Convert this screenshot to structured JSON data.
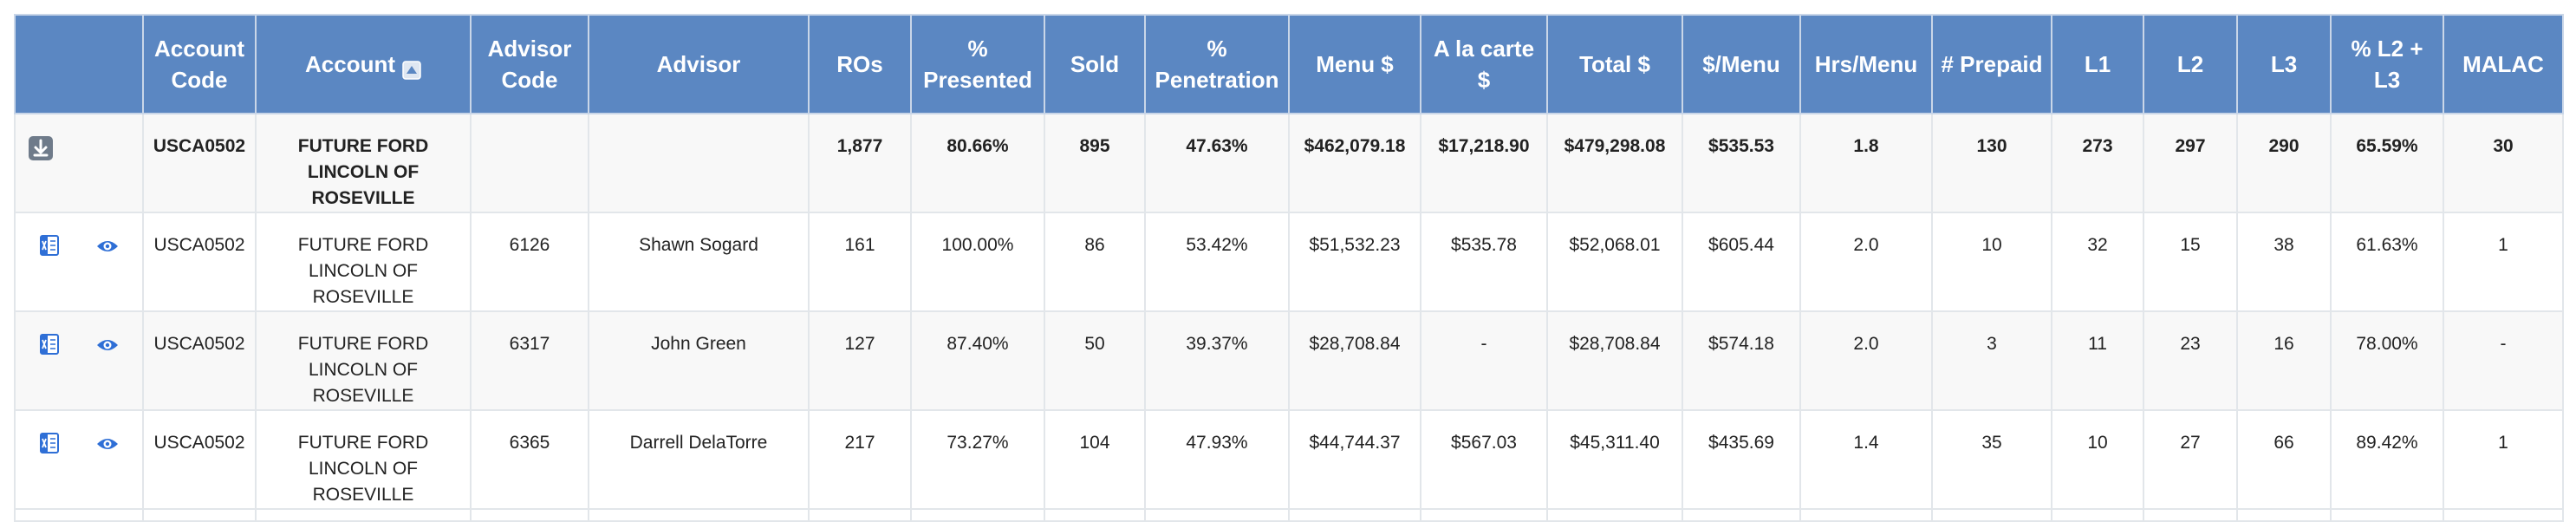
{
  "headers": {
    "blank": "",
    "account_code": "Account Code",
    "account": "Account",
    "advisor_code": "Advisor Code",
    "advisor": "Advisor",
    "ros": "ROs",
    "pct_presented": "% Presented",
    "sold": "Sold",
    "pct_penetration": "% Penetration",
    "menu": "Menu $",
    "alacarte": "A la carte $",
    "total": "Total $",
    "per_menu": "$/Menu",
    "hrs_menu": "Hrs/Menu",
    "prepaid": "# Prepaid",
    "l1": "L1",
    "l2": "L2",
    "l3": "L3",
    "pct_l2l3": "% L2 + L3",
    "malac": "MALAC"
  },
  "icons": {
    "sort": "sort-ascending-icon",
    "download": "download-icon",
    "excel": "excel-export-icon",
    "view": "eye-icon",
    "accent": "#5b87c2",
    "icon_blue": "#2f6fd6"
  },
  "total_row": {
    "account_code": "USCA0502",
    "account": "FUTURE FORD LINCOLN OF ROSEVILLE",
    "advisor_code": "",
    "advisor": "",
    "ros": "1,877",
    "pct_presented": "80.66%",
    "sold": "895",
    "pct_penetration": "47.63%",
    "menu": "$462,079.18",
    "alacarte": "$17,218.90",
    "total": "$479,298.08",
    "per_menu": "$535.53",
    "hrs_menu": "1.8",
    "prepaid": "130",
    "l1": "273",
    "l2": "297",
    "l3": "290",
    "pct_l2l3": "65.59%",
    "malac": "30"
  },
  "rows": [
    {
      "account_code": "USCA0502",
      "account": "FUTURE FORD LINCOLN OF ROSEVILLE",
      "advisor_code": "6126",
      "advisor": "Shawn Sogard",
      "ros": "161",
      "pct_presented": "100.00%",
      "sold": "86",
      "pct_penetration": "53.42%",
      "menu": "$51,532.23",
      "alacarte": "$535.78",
      "total": "$52,068.01",
      "per_menu": "$605.44",
      "hrs_menu": "2.0",
      "prepaid": "10",
      "l1": "32",
      "l2": "15",
      "l3": "38",
      "pct_l2l3": "61.63%",
      "malac": "1"
    },
    {
      "account_code": "USCA0502",
      "account": "FUTURE FORD LINCOLN OF ROSEVILLE",
      "advisor_code": "6317",
      "advisor": "John Green",
      "ros": "127",
      "pct_presented": "87.40%",
      "sold": "50",
      "pct_penetration": "39.37%",
      "menu": "$28,708.84",
      "alacarte": "-",
      "total": "$28,708.84",
      "per_menu": "$574.18",
      "hrs_menu": "2.0",
      "prepaid": "3",
      "l1": "11",
      "l2": "23",
      "l3": "16",
      "pct_l2l3": "78.00%",
      "malac": "-"
    },
    {
      "account_code": "USCA0502",
      "account": "FUTURE FORD LINCOLN OF ROSEVILLE",
      "advisor_code": "6365",
      "advisor": "Darrell DelaTorre",
      "ros": "217",
      "pct_presented": "73.27%",
      "sold": "104",
      "pct_penetration": "47.93%",
      "menu": "$44,744.37",
      "alacarte": "$567.03",
      "total": "$45,311.40",
      "per_menu": "$435.69",
      "hrs_menu": "1.4",
      "prepaid": "35",
      "l1": "10",
      "l2": "27",
      "l3": "66",
      "pct_l2l3": "89.42%",
      "malac": "1"
    }
  ]
}
